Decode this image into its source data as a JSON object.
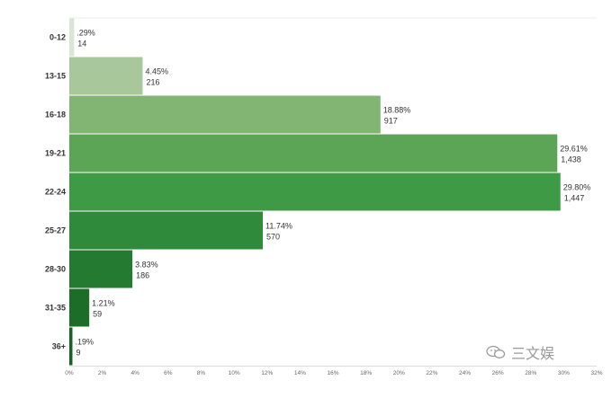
{
  "chart_data": {
    "type": "bar",
    "orientation": "horizontal",
    "categories": [
      "0-12",
      "13-15",
      "16-18",
      "19-21",
      "22-24",
      "25-27",
      "28-30",
      "31-35",
      "36+"
    ],
    "percent_labels": [
      ".29%",
      "4.45%",
      "18.88%",
      "29.61%",
      "29.80%",
      "11.74%",
      "3.83%",
      "1.21%",
      ".19%"
    ],
    "values": [
      0.29,
      4.45,
      18.88,
      29.61,
      29.8,
      11.74,
      3.83,
      1.21,
      0.19
    ],
    "counts": [
      "14",
      "216",
      "917",
      "1,438",
      "1,447",
      "570",
      "186",
      "59",
      "9"
    ],
    "bar_colors": [
      "#d9e6d3",
      "#a8c79a",
      "#82b574",
      "#5da556",
      "#3f9a46",
      "#2f8a3b",
      "#237a30",
      "#1c6d27",
      "#156320"
    ],
    "xlim": [
      0,
      32
    ],
    "x_ticks": [
      "0%",
      "2%",
      "4%",
      "6%",
      "8%",
      "10%",
      "12%",
      "14%",
      "16%",
      "18%",
      "20%",
      "22%",
      "24%",
      "26%",
      "28%",
      "30%",
      "32%"
    ],
    "grid": false,
    "legend": "none"
  },
  "watermark": {
    "icon": "wechat-icon",
    "text": "三文娱"
  }
}
